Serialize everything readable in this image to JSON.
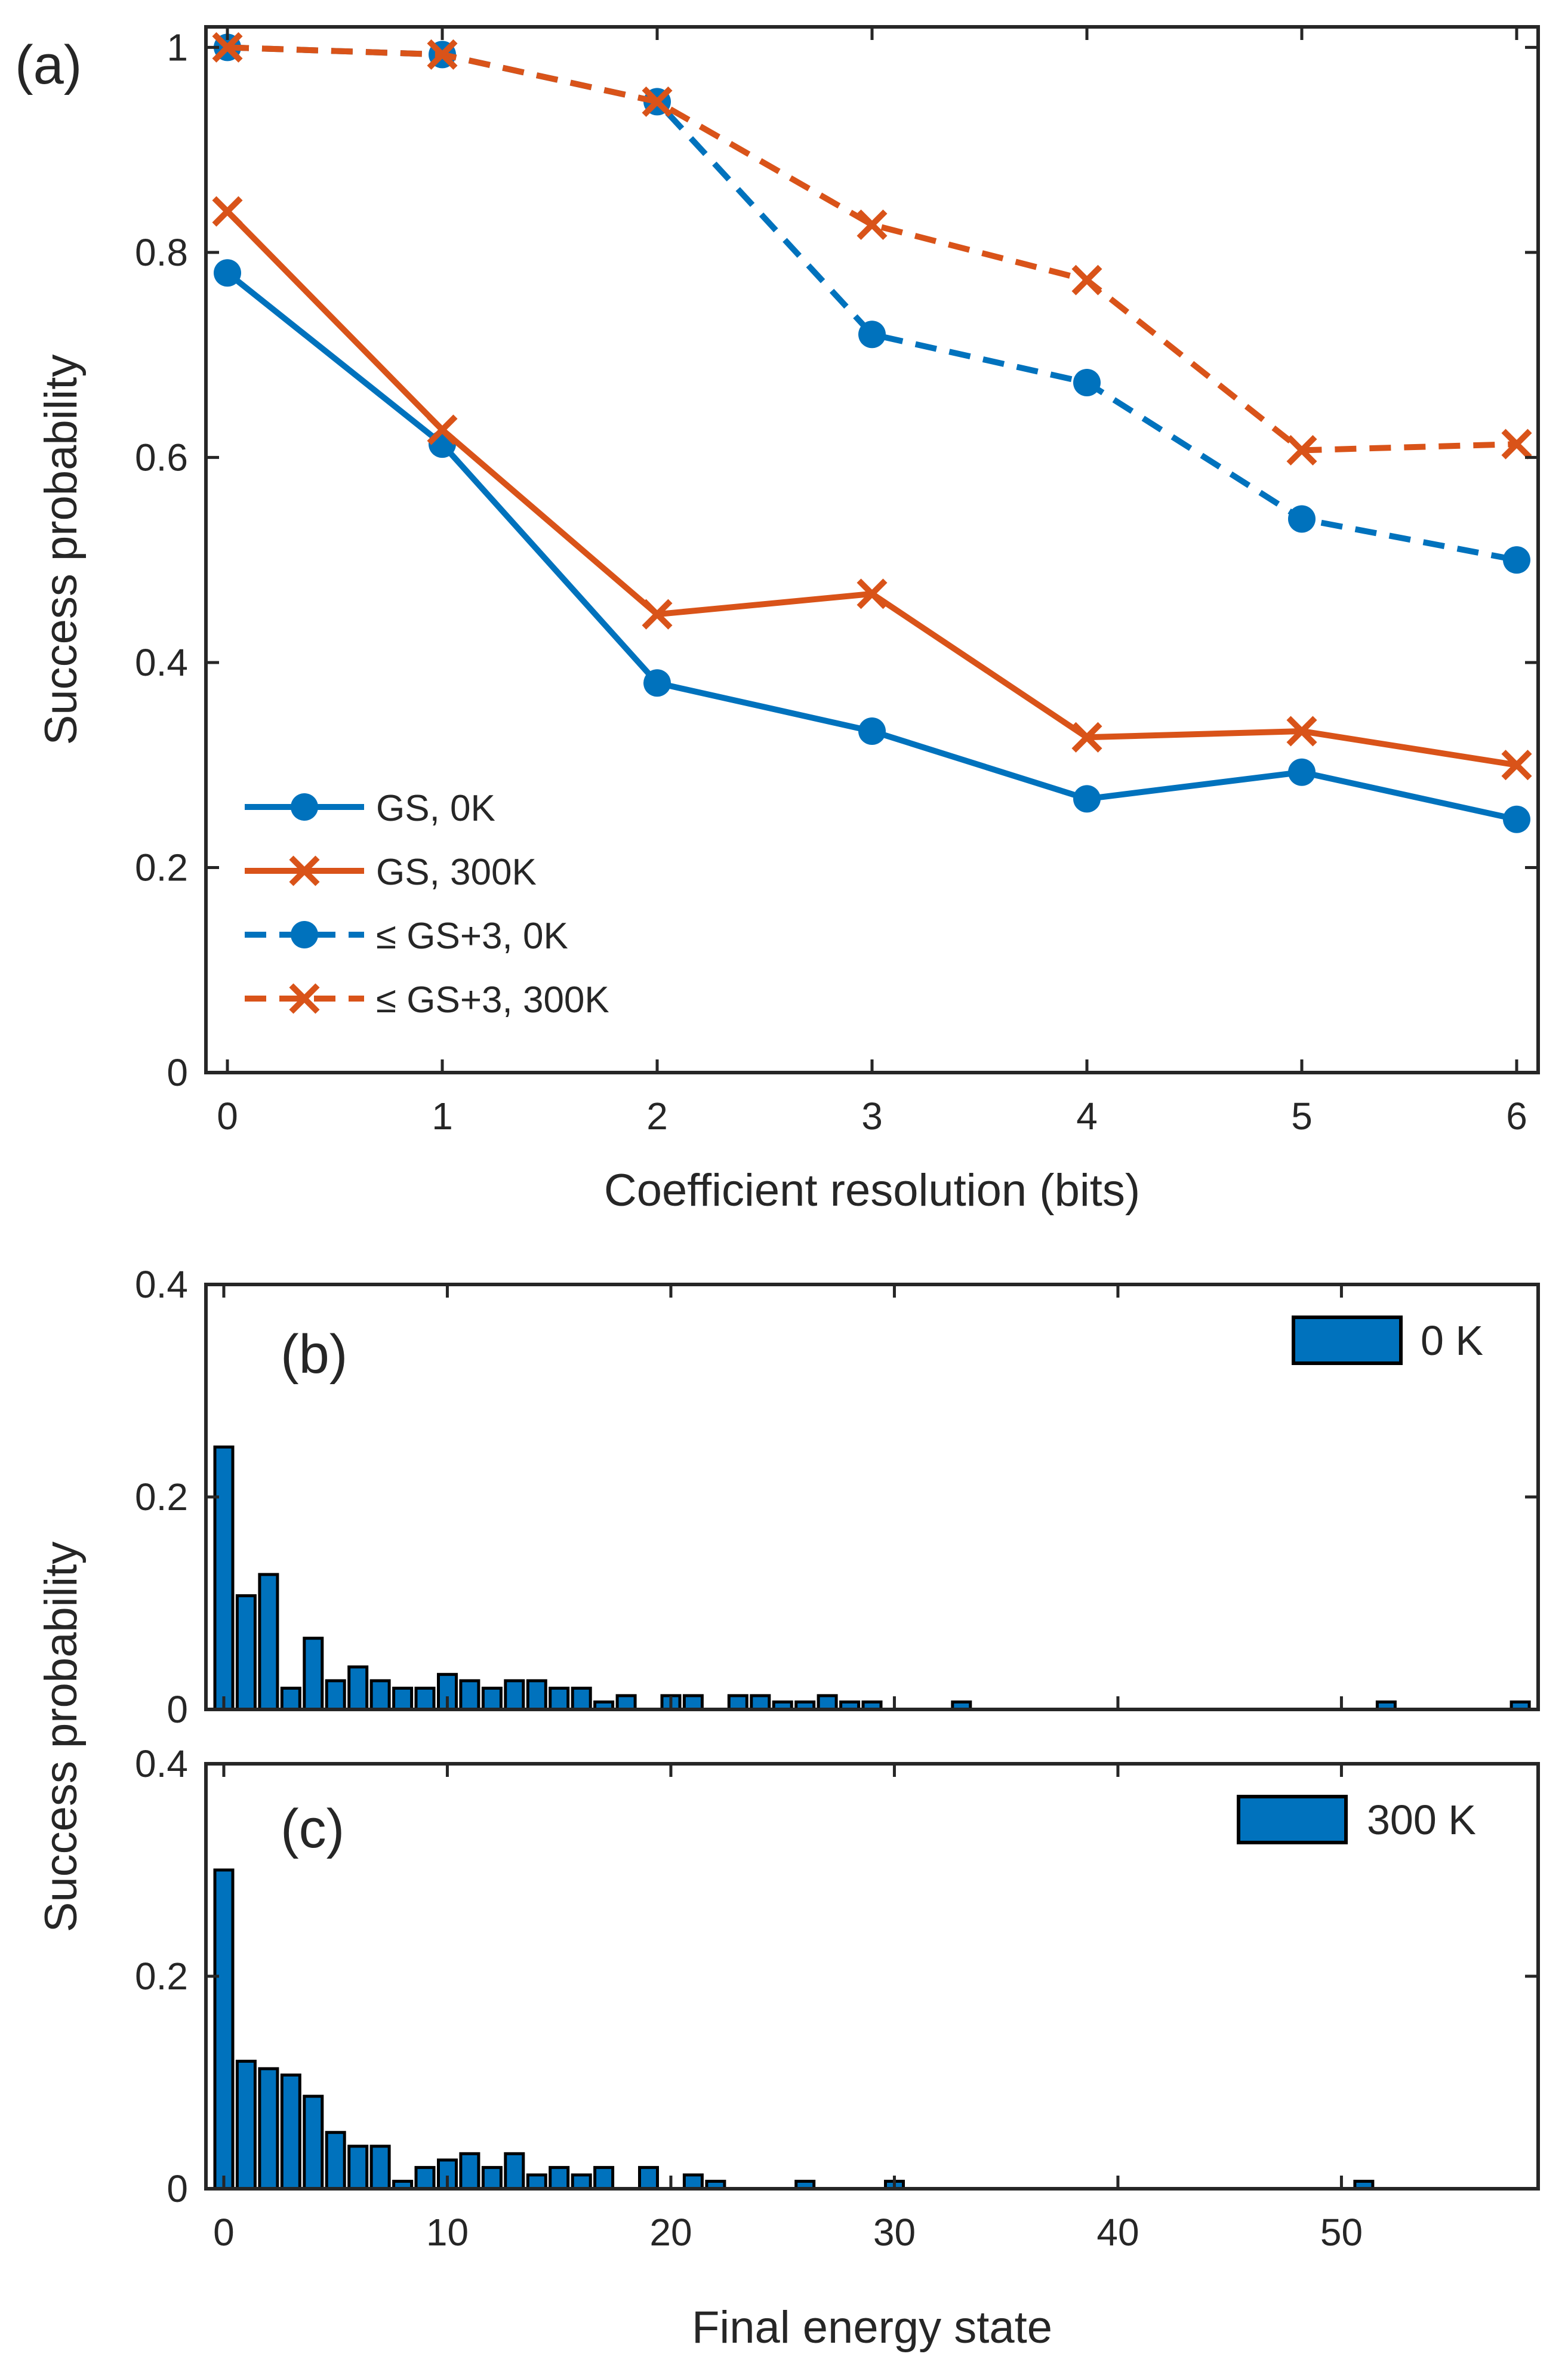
{
  "chart_data": [
    {
      "panel": "(a)",
      "type": "line",
      "xlabel": "Coefficient resolution (bits)",
      "ylabel": "Success probability",
      "x": [
        0,
        1,
        2,
        3,
        4,
        5,
        6
      ],
      "xlim": [
        -0.1,
        6.1
      ],
      "ylim": [
        0,
        1.02
      ],
      "xticks": [
        "0",
        "1",
        "2",
        "3",
        "4",
        "5",
        "6"
      ],
      "yticks": [
        "0",
        "0.2",
        "0.4",
        "0.6",
        "0.8",
        "1"
      ],
      "legend_position": "bottom-left",
      "series": [
        {
          "name": "GS, 0K",
          "style": "solid",
          "marker": "circle",
          "color": "#0072BD",
          "values": [
            0.78,
            0.613,
            0.38,
            0.333,
            0.267,
            0.293,
            0.247
          ]
        },
        {
          "name": "GS, 300K",
          "style": "solid",
          "marker": "x",
          "color": "#D95319",
          "values": [
            0.84,
            0.627,
            0.447,
            0.467,
            0.327,
            0.333,
            0.3
          ]
        },
        {
          "name": "≤ GS+3, 0K",
          "style": "dashed",
          "marker": "circle",
          "color": "#0072BD",
          "values": [
            1.0,
            0.993,
            0.947,
            0.72,
            0.673,
            0.54,
            0.5
          ]
        },
        {
          "name": "≤ GS+3, 300K",
          "style": "dashed",
          "marker": "x",
          "color": "#D95319",
          "values": [
            1.0,
            0.993,
            0.947,
            0.827,
            0.773,
            0.607,
            0.613
          ]
        }
      ]
    },
    {
      "panel": "(b)",
      "type": "bar",
      "legend": "0 K",
      "ylabel": "Success probability",
      "ylim": [
        0,
        0.4
      ],
      "yticks": [
        "0",
        "0.2",
        "0.4"
      ],
      "xlim": [
        -0.8,
        58.8
      ],
      "color": "#0072BD",
      "x": [
        0,
        1,
        2,
        3,
        4,
        5,
        6,
        7,
        8,
        9,
        10,
        11,
        12,
        13,
        14,
        15,
        16,
        17,
        18,
        19,
        20,
        21,
        22,
        23,
        24,
        25,
        26,
        27,
        28,
        29,
        30,
        31,
        32,
        33,
        34,
        35,
        36,
        37,
        38,
        39,
        40,
        41,
        42,
        43,
        44,
        45,
        46,
        47,
        48,
        49,
        50,
        51,
        52,
        53,
        54,
        55,
        56,
        57,
        58
      ],
      "values": [
        0.247,
        0.107,
        0.127,
        0.02,
        0.067,
        0.027,
        0.04,
        0.027,
        0.02,
        0.02,
        0.033,
        0.027,
        0.02,
        0.027,
        0.027,
        0.02,
        0.02,
        0.007,
        0.013,
        0,
        0.013,
        0.013,
        0,
        0.013,
        0.013,
        0.007,
        0.007,
        0.013,
        0.007,
        0.007,
        0,
        0,
        0,
        0.007,
        0,
        0,
        0,
        0,
        0,
        0,
        0,
        0,
        0,
        0,
        0,
        0,
        0,
        0,
        0,
        0,
        0,
        0,
        0.007,
        0,
        0,
        0,
        0,
        0,
        0.007
      ]
    },
    {
      "panel": "(c)",
      "type": "bar",
      "legend": "300 K",
      "xlabel": "Final energy state",
      "ylabel": "Success probability",
      "ylim": [
        0,
        0.4
      ],
      "yticks": [
        "0",
        "0.2",
        "0.4"
      ],
      "xlim": [
        -0.8,
        58.8
      ],
      "xticks": [
        "0",
        "10",
        "20",
        "30",
        "40",
        "50"
      ],
      "color": "#0072BD",
      "x": [
        0,
        1,
        2,
        3,
        4,
        5,
        6,
        7,
        8,
        9,
        10,
        11,
        12,
        13,
        14,
        15,
        16,
        17,
        18,
        19,
        20,
        21,
        22,
        23,
        24,
        25,
        26,
        27,
        28,
        29,
        30,
        31,
        32,
        33,
        34,
        35,
        36,
        37,
        38,
        39,
        40,
        41,
        42,
        43,
        44,
        45,
        46,
        47,
        48,
        49,
        50,
        51,
        52,
        53,
        54,
        55,
        56,
        57,
        58
      ],
      "values": [
        0.3,
        0.12,
        0.113,
        0.107,
        0.087,
        0.053,
        0.04,
        0.04,
        0.007,
        0.02,
        0.027,
        0.033,
        0.02,
        0.033,
        0.013,
        0.02,
        0.013,
        0.02,
        0,
        0.02,
        0,
        0.013,
        0.007,
        0,
        0,
        0,
        0.007,
        0,
        0,
        0,
        0.007,
        0,
        0,
        0,
        0,
        0,
        0,
        0,
        0,
        0,
        0,
        0,
        0,
        0,
        0,
        0,
        0,
        0,
        0,
        0,
        0,
        0.007,
        0,
        0,
        0,
        0,
        0,
        0,
        0
      ]
    }
  ]
}
